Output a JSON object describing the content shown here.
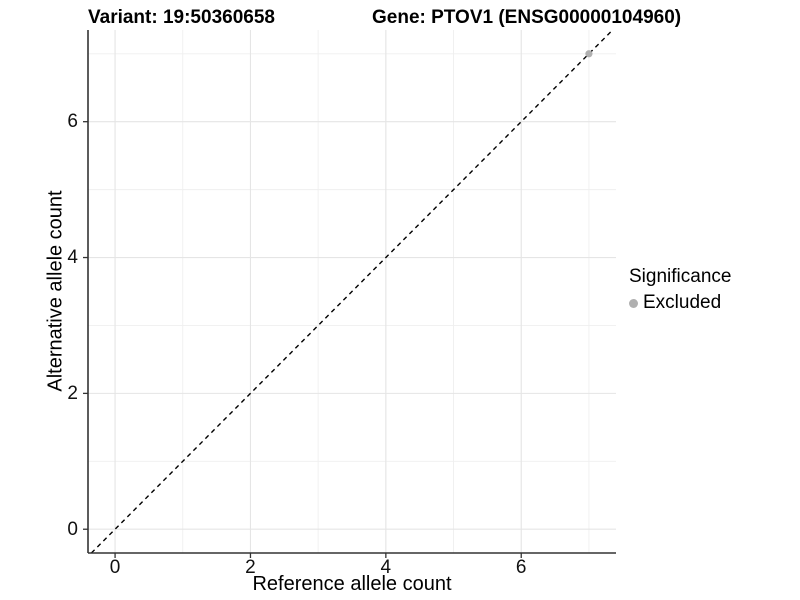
{
  "chart_data": {
    "type": "scatter",
    "titles": [
      "Variant: 19:50360658",
      "Gene: PTOV1 (ENSG00000104960)"
    ],
    "xlabel": "Reference allele count",
    "ylabel": "Alternative allele count",
    "xlim": [
      -0.4,
      7.4
    ],
    "ylim": [
      -0.35,
      7.35
    ],
    "x_ticks": [
      0,
      2,
      4,
      6
    ],
    "y_ticks": [
      0,
      2,
      4,
      6
    ],
    "x_minor_ticks": [
      1,
      3,
      5,
      7
    ],
    "y_minor_ticks": [
      1,
      3,
      5,
      7
    ],
    "grid": true,
    "background": "#ffffff",
    "major_grid_color": "#e5e5e5",
    "minor_grid_color": "#efefef",
    "axis_line_color": "#333333",
    "series": [
      {
        "name": "Excluded",
        "color": "#b0b0b0",
        "points": [
          [
            7,
            7
          ]
        ]
      }
    ],
    "reference_line": {
      "kind": "identity",
      "slope": 1,
      "intercept": 0,
      "style": "dashed",
      "color": "#000000"
    },
    "legend": {
      "title": "Significance",
      "position": "right",
      "entries": [
        {
          "label": "Excluded",
          "color": "#b0b0b0"
        }
      ]
    }
  }
}
